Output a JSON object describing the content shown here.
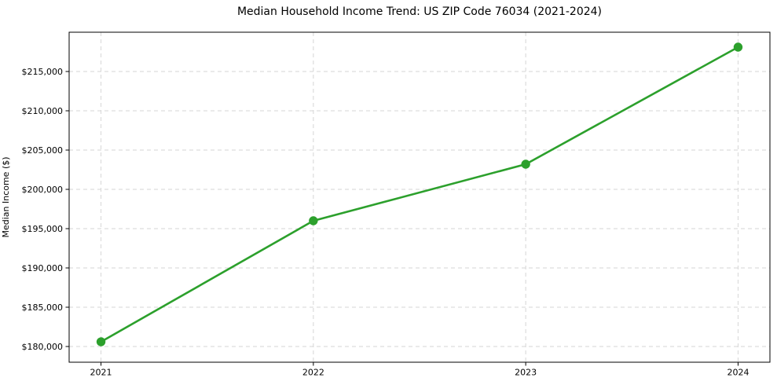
{
  "figure": {
    "background": "#ffffff"
  },
  "chart_data": {
    "type": "line",
    "title": "Median Household Income Trend: US ZIP Code 76034 (2021-2024)",
    "xlabel": "",
    "ylabel": "Median Income ($)",
    "x": [
      2021,
      2022,
      2023,
      2024
    ],
    "x_labels": [
      "2021",
      "2022",
      "2023",
      "2024"
    ],
    "series": [
      {
        "name": "Median Household Income",
        "values": [
          180600,
          196000,
          203200,
          218100
        ]
      }
    ],
    "ylim": [
      178000,
      220000
    ],
    "yticks": [
      180000,
      185000,
      190000,
      195000,
      200000,
      205000,
      210000,
      215000
    ],
    "ytick_labels": [
      "$180,000",
      "$185,000",
      "$190,000",
      "$195,000",
      "$200,000",
      "$205,000",
      "$210,000",
      "$215,000"
    ],
    "grid": true,
    "grid_style": "dashed",
    "legend_position": "none",
    "line_color": "#2ca02c",
    "marker_color": "#2ca02c",
    "grid_color": "#d6d6d6",
    "axis_color": "#000000",
    "text_color": "#000000"
  }
}
